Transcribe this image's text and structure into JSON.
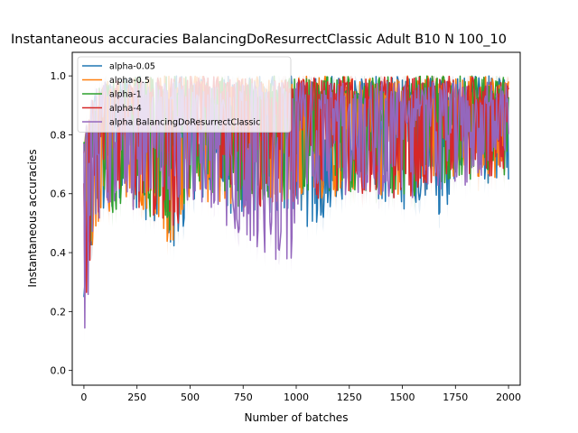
{
  "chart_data": {
    "type": "line",
    "title": "Instantaneous accuracies BalancingDoResurrectClassic Adult B10 N 100_10",
    "xlabel": "Number of batches",
    "ylabel": "Instantaneous accuracies",
    "xlim": [
      -55,
      2055
    ],
    "ylim": [
      -0.05,
      1.08
    ],
    "xticks": [
      0,
      250,
      500,
      750,
      1000,
      1250,
      1500,
      1750,
      2000
    ],
    "yticks": [
      0.0,
      0.2,
      0.4,
      0.6,
      0.8,
      1.0
    ],
    "xtick_labels": [
      "0",
      "250",
      "500",
      "750",
      "1000",
      "1250",
      "1500",
      "1750",
      "2000"
    ],
    "ytick_labels": [
      "0.0",
      "0.2",
      "0.4",
      "0.6",
      "0.8",
      "1.0"
    ],
    "legend_position": "upper-left",
    "grid": false,
    "x_range": [
      0,
      2000
    ],
    "series": [
      {
        "name": "alpha-0.05",
        "color": "#1f77b4",
        "envelope": [
          [
            0,
            0.22,
            0.8
          ],
          [
            50,
            0.45,
            0.95
          ],
          [
            100,
            0.52,
            0.98
          ],
          [
            250,
            0.55,
            1.0
          ],
          [
            430,
            0.38,
            1.0
          ],
          [
            500,
            0.58,
            1.0
          ],
          [
            750,
            0.52,
            1.0
          ],
          [
            1000,
            0.55,
            1.0
          ],
          [
            1050,
            0.46,
            1.0
          ],
          [
            1250,
            0.6,
            1.0
          ],
          [
            1500,
            0.55,
            1.0
          ],
          [
            1670,
            0.49,
            1.0
          ],
          [
            1750,
            0.63,
            1.0
          ],
          [
            2000,
            0.62,
            1.0
          ]
        ]
      },
      {
        "name": "alpha-0.5",
        "color": "#ff7f0e",
        "envelope": [
          [
            0,
            0.25,
            0.8
          ],
          [
            50,
            0.45,
            0.95
          ],
          [
            100,
            0.52,
            0.98
          ],
          [
            250,
            0.55,
            1.0
          ],
          [
            430,
            0.4,
            1.0
          ],
          [
            500,
            0.58,
            1.0
          ],
          [
            750,
            0.55,
            1.0
          ],
          [
            1000,
            0.56,
            1.0
          ],
          [
            1250,
            0.6,
            1.0
          ],
          [
            1500,
            0.58,
            1.0
          ],
          [
            1750,
            0.64,
            1.0
          ],
          [
            2000,
            0.66,
            1.0
          ]
        ]
      },
      {
        "name": "alpha-1",
        "color": "#2ca02c",
        "envelope": [
          [
            0,
            0.25,
            0.8
          ],
          [
            50,
            0.45,
            0.95
          ],
          [
            100,
            0.52,
            0.98
          ],
          [
            250,
            0.55,
            1.0
          ],
          [
            430,
            0.45,
            1.0
          ],
          [
            500,
            0.58,
            1.0
          ],
          [
            750,
            0.55,
            1.0
          ],
          [
            1000,
            0.57,
            1.0
          ],
          [
            1250,
            0.6,
            1.0
          ],
          [
            1500,
            0.58,
            1.0
          ],
          [
            1750,
            0.64,
            1.0
          ],
          [
            2000,
            0.66,
            1.0
          ]
        ]
      },
      {
        "name": "alpha-4",
        "color": "#d62728",
        "envelope": [
          [
            0,
            0.2,
            0.8
          ],
          [
            50,
            0.45,
            0.95
          ],
          [
            100,
            0.52,
            0.98
          ],
          [
            250,
            0.55,
            1.0
          ],
          [
            430,
            0.45,
            1.0
          ],
          [
            500,
            0.58,
            1.0
          ],
          [
            750,
            0.55,
            1.0
          ],
          [
            1000,
            0.57,
            1.0
          ],
          [
            1250,
            0.6,
            1.0
          ],
          [
            1500,
            0.58,
            1.0
          ],
          [
            1750,
            0.64,
            1.0
          ],
          [
            2000,
            0.66,
            1.0
          ]
        ]
      },
      {
        "name": "alpha BalancingDoResurrectClassic",
        "color": "#9467bd",
        "envelope": [
          [
            0,
            0.0,
            0.8
          ],
          [
            20,
            0.2,
            0.9
          ],
          [
            50,
            0.45,
            0.95
          ],
          [
            100,
            0.52,
            0.98
          ],
          [
            250,
            0.55,
            0.98
          ],
          [
            500,
            0.58,
            0.98
          ],
          [
            750,
            0.45,
            0.98
          ],
          [
            980,
            0.34,
            0.98
          ],
          [
            1000,
            0.55,
            0.98
          ],
          [
            1250,
            0.6,
            0.98
          ],
          [
            1500,
            0.58,
            0.98
          ],
          [
            1750,
            0.6,
            0.98
          ],
          [
            2000,
            0.68,
            0.98
          ]
        ]
      }
    ]
  }
}
